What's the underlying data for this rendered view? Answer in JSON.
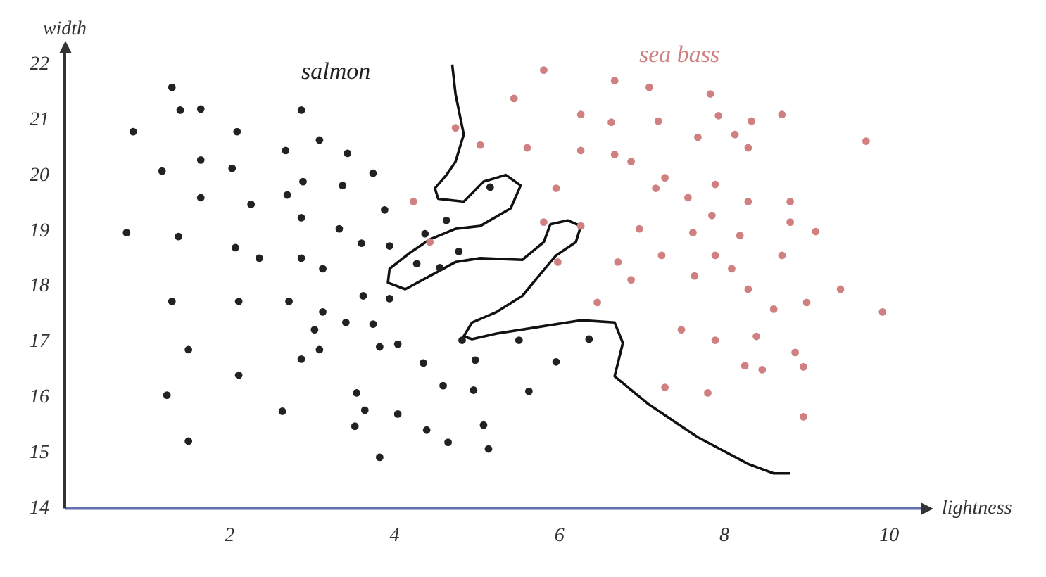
{
  "chart_data": {
    "type": "scatter",
    "xlabel": "lightness",
    "ylabel": "width",
    "xlim": [
      0,
      10.4
    ],
    "ylim": [
      14,
      22.2
    ],
    "xticks": [
      2,
      4,
      6,
      8,
      10
    ],
    "yticks": [
      14,
      15,
      16,
      17,
      18,
      19,
      20,
      21,
      22
    ],
    "grid": false,
    "legend": false,
    "marker": "circle",
    "series": [
      {
        "name": "salmon",
        "color": "#222222",
        "x": [
          1.3,
          1.4,
          1.65,
          2.87,
          0.83,
          2.09,
          3.09,
          2.68,
          3.43,
          1.18,
          1.65,
          2.03,
          3.74,
          2.89,
          3.37,
          1.65,
          2.26,
          2.7,
          3.88,
          2.87,
          3.33,
          0.75,
          1.38,
          2.07,
          2.36,
          2.87,
          3.13,
          3.94,
          4.27,
          3.6,
          4.37,
          4.63,
          5.16,
          4.78,
          4.55,
          1.3,
          2.11,
          2.72,
          3.62,
          3.13,
          3.03,
          3.94,
          3.41,
          3.74,
          3.09,
          1.5,
          2.87,
          3.82,
          4.04,
          2.11,
          1.24,
          3.54,
          2.64,
          3.64,
          3.52,
          1.5,
          4.82,
          5.51,
          4.35,
          4.98,
          5.96,
          6.36,
          4.59,
          4.96,
          5.63,
          5.08,
          4.04,
          4.39,
          4.65,
          3.82,
          5.14
        ],
        "values": [
          21.59,
          21.18,
          21.2,
          21.18,
          20.79,
          20.79,
          20.64,
          20.45,
          20.4,
          20.08,
          20.28,
          20.13,
          20.04,
          19.89,
          19.82,
          19.6,
          19.48,
          19.65,
          19.38,
          19.24,
          19.04,
          18.97,
          18.9,
          18.7,
          18.51,
          18.51,
          18.32,
          18.73,
          18.41,
          18.78,
          18.95,
          19.19,
          19.79,
          18.63,
          18.34,
          17.73,
          17.73,
          17.73,
          17.83,
          17.54,
          17.22,
          17.78,
          17.35,
          17.32,
          16.86,
          16.86,
          16.69,
          16.91,
          16.96,
          16.4,
          16.04,
          16.08,
          15.75,
          15.77,
          15.48,
          15.21,
          17.03,
          17.03,
          16.62,
          16.67,
          16.64,
          17.05,
          16.21,
          16.13,
          16.11,
          15.5,
          15.7,
          15.41,
          15.19,
          14.92,
          15.07
        ]
      },
      {
        "name": "sea bass",
        "color": "#d08080",
        "x": [
          5.81,
          6.67,
          7.09,
          7.83,
          5.45,
          6.26,
          6.63,
          7.2,
          7.93,
          8.13,
          8.33,
          8.7,
          9.72,
          5.61,
          6.26,
          6.67,
          6.87,
          7.68,
          8.29,
          7.17,
          7.28,
          7.56,
          7.89,
          8.29,
          8.8,
          7.85,
          6.97,
          7.62,
          8.19,
          8.8,
          9.11,
          7.24,
          7.89,
          8.09,
          8.7,
          9.41,
          7.64,
          8.29,
          8.6,
          9.0,
          9.92,
          6.87,
          6.46,
          7.48,
          7.89,
          8.39,
          8.25,
          8.46,
          8.96,
          8.96,
          6.71,
          5.98,
          6.26,
          5.81,
          4.74,
          5.04,
          4.43,
          4.23,
          5.96,
          7.28,
          7.8,
          8.86
        ],
        "values": [
          21.9,
          21.71,
          21.59,
          21.47,
          21.39,
          21.1,
          20.96,
          20.98,
          21.08,
          20.74,
          20.98,
          21.1,
          20.62,
          20.5,
          20.45,
          20.38,
          20.25,
          20.69,
          20.5,
          19.77,
          19.96,
          19.6,
          19.84,
          19.53,
          19.53,
          19.28,
          19.04,
          18.97,
          18.92,
          19.16,
          18.99,
          18.56,
          18.56,
          18.32,
          18.56,
          17.95,
          18.19,
          17.95,
          17.59,
          17.71,
          17.54,
          18.12,
          17.71,
          17.22,
          17.03,
          17.1,
          16.57,
          16.5,
          16.55,
          15.65,
          18.44,
          18.44,
          19.09,
          19.16,
          20.86,
          20.55,
          18.8,
          19.53,
          19.77,
          16.18,
          16.08,
          16.81
        ]
      },
      {
        "type": "line",
        "color": "#111111",
        "marker": "none",
        "x": [
          4.7,
          4.74,
          4.84,
          4.74,
          4.63,
          4.49,
          4.53,
          4.84,
          5.08,
          5.35,
          5.53,
          5.41,
          5.04,
          4.74,
          4.43,
          4.19,
          3.94,
          3.92,
          4.13,
          4.43,
          4.74,
          5.04,
          5.55,
          5.81,
          5.89,
          6.1,
          6.26,
          6.2,
          5.96,
          5.75,
          5.55,
          5.24,
          4.94,
          4.84,
          4.94,
          5.24,
          6.26,
          6.67,
          6.77,
          6.71,
          6.67,
          7.07,
          7.68,
          8.29,
          8.6,
          8.8
        ],
        "values": [
          22.0,
          21.47,
          20.74,
          20.25,
          20.01,
          19.77,
          19.58,
          19.53,
          19.89,
          20.01,
          19.82,
          19.41,
          19.09,
          19.04,
          18.85,
          18.61,
          18.32,
          18.07,
          17.95,
          18.19,
          18.44,
          18.51,
          18.48,
          18.8,
          19.12,
          19.19,
          19.09,
          18.8,
          18.56,
          18.19,
          17.83,
          17.54,
          17.35,
          17.1,
          17.05,
          17.15,
          17.39,
          17.35,
          16.98,
          16.62,
          16.38,
          15.89,
          15.28,
          14.8,
          14.63,
          14.63
        ]
      }
    ]
  }
}
